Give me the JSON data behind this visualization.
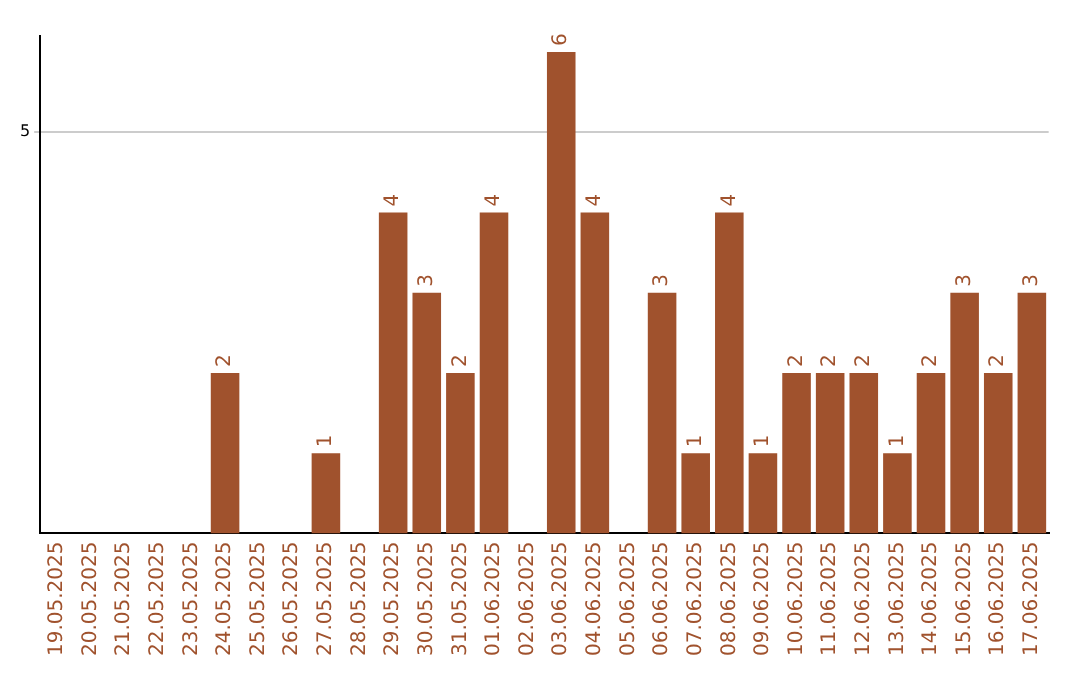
{
  "chart_data": {
    "type": "bar",
    "categories": [
      "19.05.2025",
      "20.05.2025",
      "21.05.2025",
      "22.05.2025",
      "23.05.2025",
      "24.05.2025",
      "25.05.2025",
      "26.05.2025",
      "27.05.2025",
      "28.05.2025",
      "29.05.2025",
      "30.05.2025",
      "31.05.2025",
      "01.06.2025",
      "02.06.2025",
      "03.06.2025",
      "04.06.2025",
      "05.06.2025",
      "06.06.2025",
      "07.06.2025",
      "08.06.2025",
      "09.06.2025",
      "10.06.2025",
      "11.06.2025",
      "12.06.2025",
      "13.06.2025",
      "14.06.2025",
      "15.06.2025",
      "16.06.2025",
      "17.06.2025"
    ],
    "values": [
      0,
      0,
      0,
      0,
      0,
      2,
      0,
      0,
      1,
      0,
      4,
      3,
      2,
      4,
      0,
      6,
      4,
      0,
      3,
      1,
      4,
      1,
      2,
      2,
      2,
      1,
      2,
      3,
      2,
      3
    ],
    "value_labels": [
      null,
      null,
      null,
      null,
      null,
      "2",
      null,
      null,
      "1",
      null,
      "4",
      "3",
      "2",
      "4",
      null,
      "6",
      "4",
      null,
      "3",
      "1",
      "4",
      "1",
      "2",
      "2",
      "2",
      "1",
      "2",
      "3",
      "2",
      "3"
    ],
    "color": "#a0522d",
    "ylim": [
      0,
      6.2
    ],
    "yticks": [
      5
    ],
    "grid": "y",
    "legend": false
  }
}
